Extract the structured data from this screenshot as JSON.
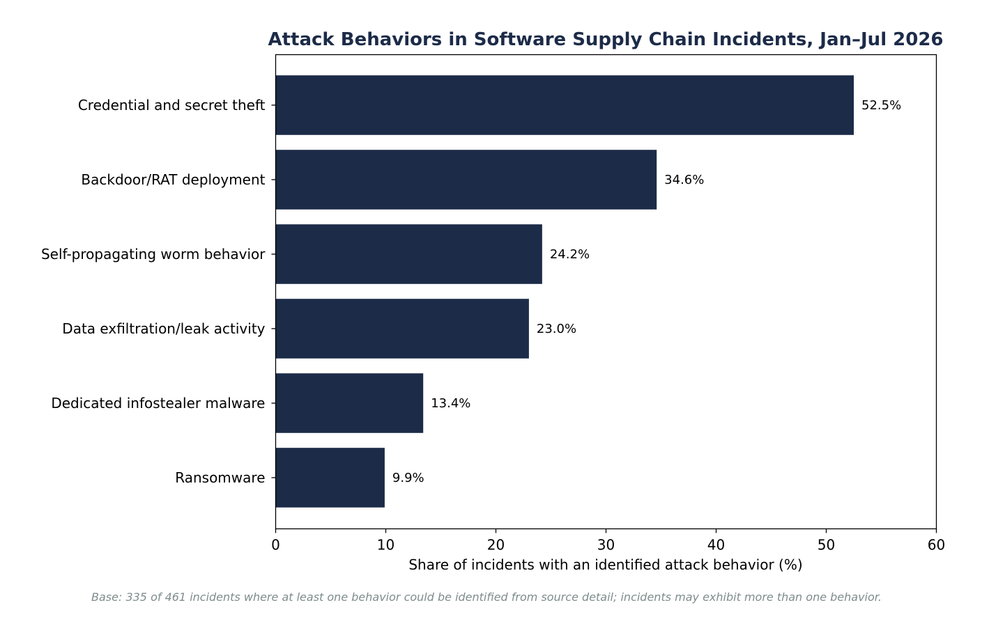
{
  "colors": {
    "bar": "#1c2b48",
    "title": "#1c2b48",
    "footnote": "#7f8c8d",
    "axis": "#000000"
  },
  "chart_data": {
    "type": "bar",
    "orientation": "horizontal",
    "title": "Attack Behaviors in Software Supply Chain Incidents, Jan–Jul 2026",
    "xlabel": "Share of incidents with an identified attack behavior (%)",
    "ylabel": "",
    "xlim": [
      0,
      60
    ],
    "xticks": [
      0,
      10,
      20,
      30,
      40,
      50,
      60
    ],
    "grid": false,
    "categories": [
      "Credential and secret theft",
      "Backdoor/RAT deployment",
      "Self-propagating worm behavior",
      "Data exfiltration/leak activity",
      "Dedicated infostealer malware",
      "Ransomware"
    ],
    "values": [
      52.5,
      34.6,
      24.2,
      23.0,
      13.4,
      9.9
    ],
    "value_labels": [
      "52.5%",
      "34.6%",
      "24.2%",
      "23.0%",
      "13.4%",
      "9.9%"
    ],
    "footnote": "Base: 335 of 461 incidents where at least one behavior could be identified from source detail; incidents may exhibit more than one behavior."
  }
}
